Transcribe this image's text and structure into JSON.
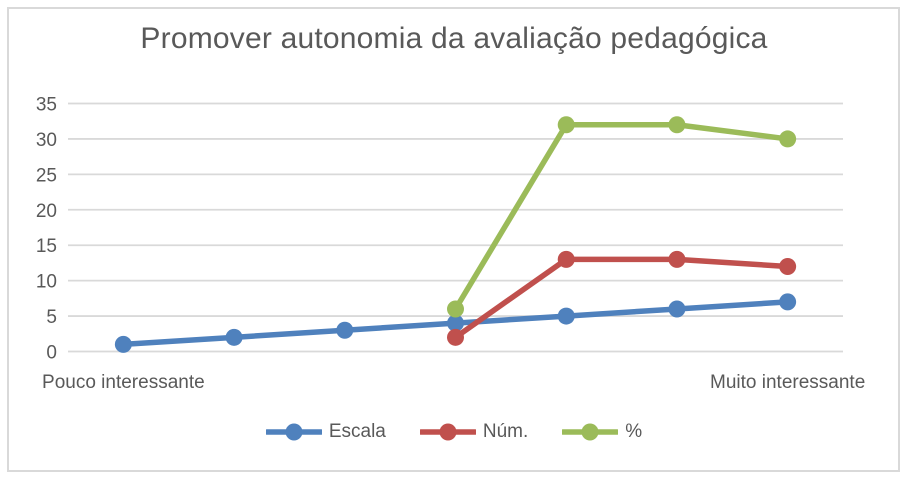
{
  "window": {
    "background_color": "#ffffff",
    "border_color": "#d9d9d9"
  },
  "chart_data": {
    "type": "line",
    "title": "Promover autonomia da avaliação pedagógica",
    "categories": [
      "Pouco interessante",
      "",
      "",
      "",
      "",
      "",
      "Muito interessante"
    ],
    "series": [
      {
        "name": "Escala",
        "color": "#4F81BD",
        "values": [
          1,
          2,
          3,
          4,
          5,
          6,
          7
        ]
      },
      {
        "name": "Núm.",
        "color": "#C0504D",
        "values": [
          null,
          null,
          null,
          2,
          13,
          13,
          12
        ]
      },
      {
        "name": "%",
        "color": "#9BBB59",
        "values": [
          null,
          null,
          null,
          6,
          32,
          32,
          30
        ]
      }
    ],
    "xlabel": "",
    "ylabel": "",
    "ylim": [
      0,
      35
    ],
    "ytick_step": 5,
    "ytick_labels": [
      "0",
      "5",
      "10",
      "15",
      "20",
      "25",
      "30",
      "35"
    ],
    "grid": true,
    "gridline_color": "#d9d9d9",
    "text_color": "#595959",
    "legend_position": "bottom",
    "legend_entries": [
      "Escala",
      "Núm.",
      "%"
    ],
    "marker": "circle"
  }
}
